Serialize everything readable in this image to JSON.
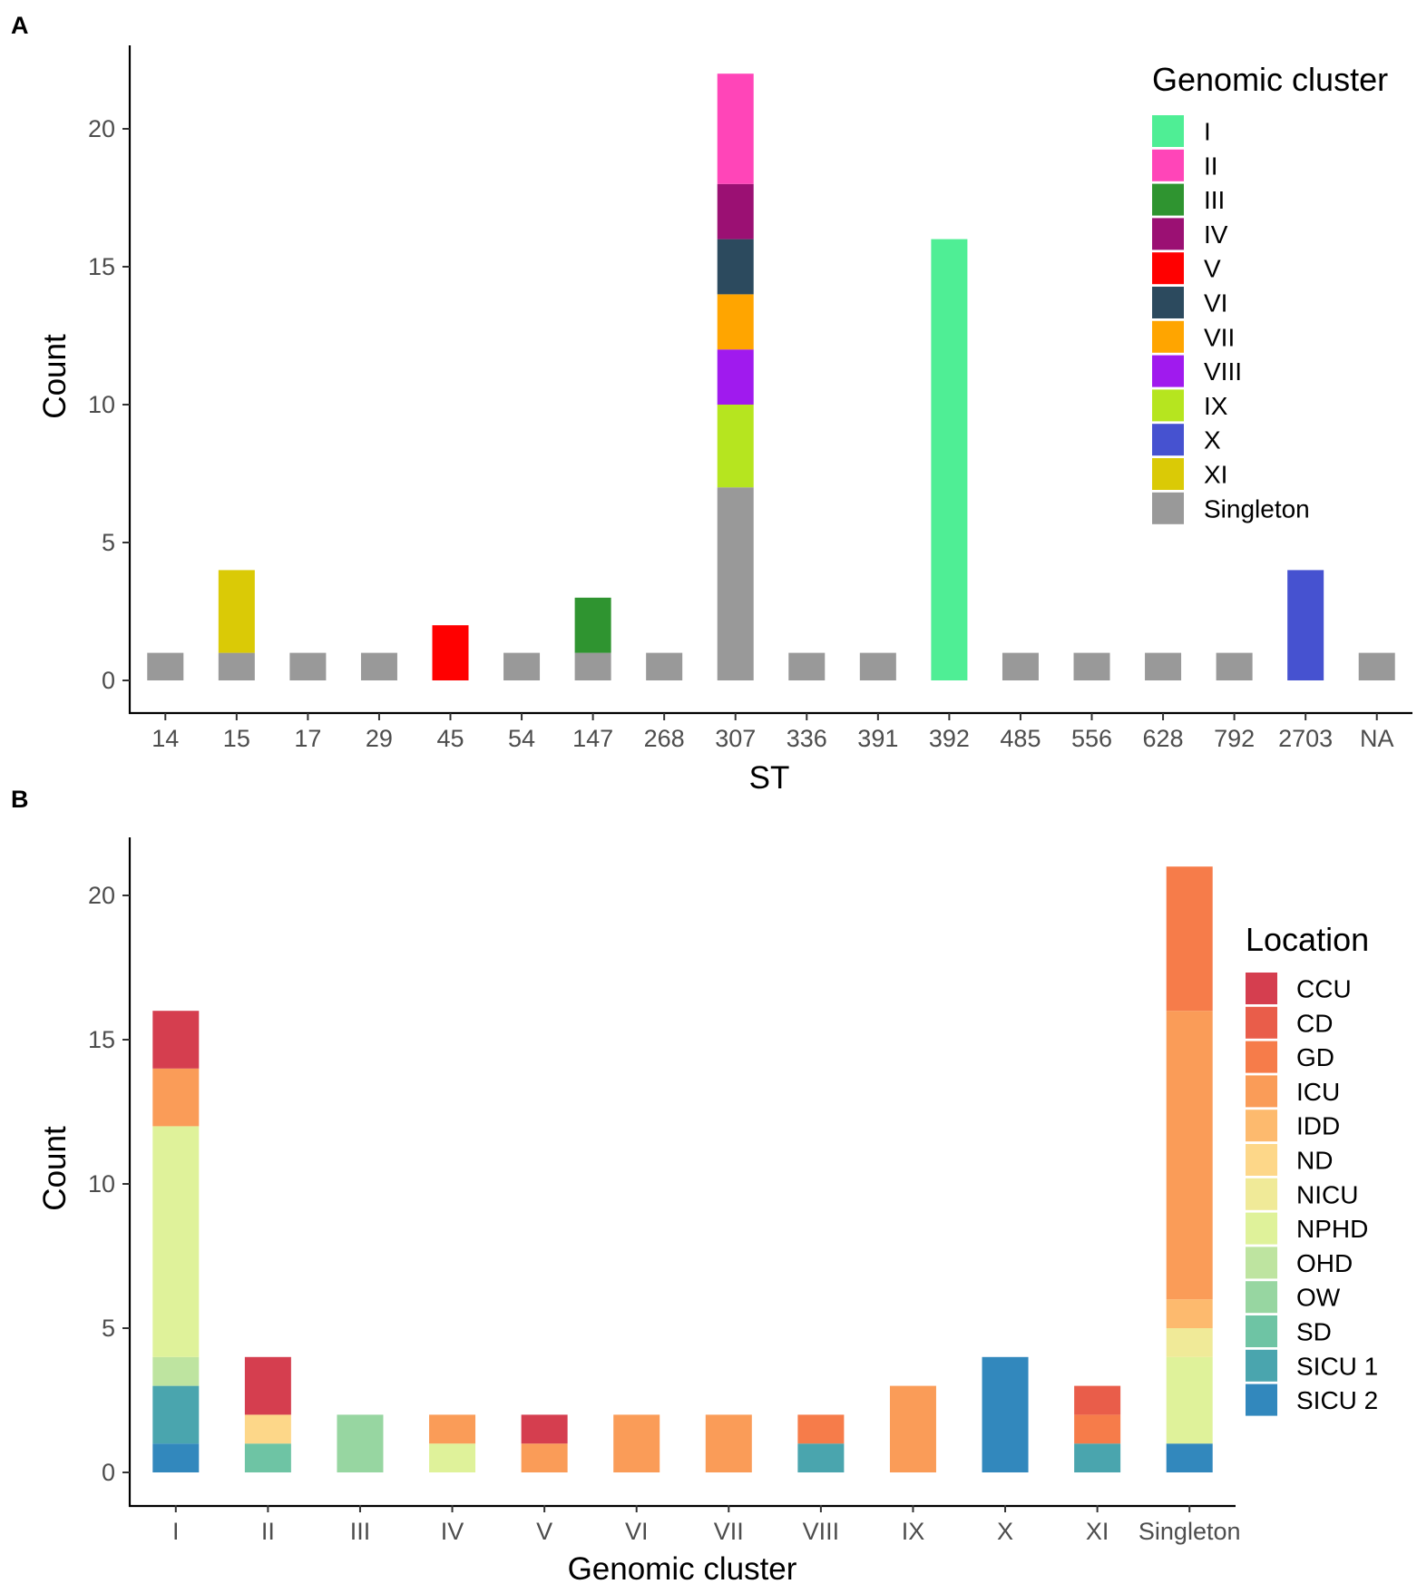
{
  "chart_data": [
    {
      "panel": "A",
      "type": "bar",
      "stacked": true,
      "xlabel": "ST",
      "ylabel": "Count",
      "ylim": [
        0,
        22
      ],
      "yticks": [
        0,
        5,
        10,
        15,
        20
      ],
      "categories": [
        "14",
        "15",
        "17",
        "29",
        "45",
        "54",
        "147",
        "268",
        "307",
        "336",
        "391",
        "392",
        "485",
        "556",
        "628",
        "792",
        "2703",
        "NA"
      ],
      "legend_title": "Genomic cluster",
      "series": [
        {
          "name": "I",
          "color": "#4FEE95",
          "values": [
            0,
            0,
            0,
            0,
            0,
            0,
            0,
            0,
            0,
            0,
            0,
            16,
            0,
            0,
            0,
            0,
            0,
            0
          ]
        },
        {
          "name": "II",
          "color": "#FF45B8",
          "values": [
            0,
            0,
            0,
            0,
            0,
            0,
            0,
            0,
            4,
            0,
            0,
            0,
            0,
            0,
            0,
            0,
            0,
            0
          ]
        },
        {
          "name": "III",
          "color": "#2F9430",
          "values": [
            0,
            0,
            0,
            0,
            0,
            0,
            2,
            0,
            0,
            0,
            0,
            0,
            0,
            0,
            0,
            0,
            0,
            0
          ]
        },
        {
          "name": "IV",
          "color": "#9B1073",
          "values": [
            0,
            0,
            0,
            0,
            0,
            0,
            0,
            0,
            2,
            0,
            0,
            0,
            0,
            0,
            0,
            0,
            0,
            0
          ]
        },
        {
          "name": "V",
          "color": "#FF0000",
          "values": [
            0,
            0,
            0,
            0,
            2,
            0,
            0,
            0,
            0,
            0,
            0,
            0,
            0,
            0,
            0,
            0,
            0,
            0
          ]
        },
        {
          "name": "VI",
          "color": "#2C4A5E",
          "values": [
            0,
            0,
            0,
            0,
            0,
            0,
            0,
            0,
            2,
            0,
            0,
            0,
            0,
            0,
            0,
            0,
            0,
            0
          ]
        },
        {
          "name": "VII",
          "color": "#FFA500",
          "values": [
            0,
            0,
            0,
            0,
            0,
            0,
            0,
            0,
            2,
            0,
            0,
            0,
            0,
            0,
            0,
            0,
            0,
            0
          ]
        },
        {
          "name": "VIII",
          "color": "#A01AEE",
          "values": [
            0,
            0,
            0,
            0,
            0,
            0,
            0,
            0,
            2,
            0,
            0,
            0,
            0,
            0,
            0,
            0,
            0,
            0
          ]
        },
        {
          "name": "IX",
          "color": "#B6E51F",
          "values": [
            0,
            0,
            0,
            0,
            0,
            0,
            0,
            0,
            3,
            0,
            0,
            0,
            0,
            0,
            0,
            0,
            0,
            0
          ]
        },
        {
          "name": "X",
          "color": "#4652D0",
          "values": [
            0,
            0,
            0,
            0,
            0,
            0,
            0,
            0,
            0,
            0,
            0,
            0,
            0,
            0,
            0,
            0,
            4,
            0
          ]
        },
        {
          "name": "XI",
          "color": "#DACA06",
          "values": [
            0,
            3,
            0,
            0,
            0,
            0,
            0,
            0,
            0,
            0,
            0,
            0,
            0,
            0,
            0,
            0,
            0,
            0
          ]
        },
        {
          "name": "Singleton",
          "color": "#999999",
          "values": [
            1,
            1,
            1,
            1,
            0,
            1,
            1,
            1,
            7,
            1,
            1,
            0,
            1,
            1,
            1,
            1,
            0,
            1
          ]
        }
      ]
    },
    {
      "panel": "B",
      "type": "bar",
      "stacked": true,
      "xlabel": "Genomic cluster",
      "ylabel": "Count",
      "ylim": [
        0,
        22
      ],
      "yticks": [
        0,
        5,
        10,
        15,
        20
      ],
      "categories": [
        "I",
        "II",
        "III",
        "IV",
        "V",
        "VI",
        "VII",
        "VIII",
        "IX",
        "X",
        "XI",
        "Singleton"
      ],
      "legend_title": "Location",
      "series": [
        {
          "name": "CCU",
          "color": "#D53E4F",
          "values": [
            2,
            2,
            0,
            0,
            1,
            0,
            0,
            0,
            0,
            0,
            0,
            0
          ]
        },
        {
          "name": "CD",
          "color": "#E95D4A",
          "values": [
            0,
            0,
            0,
            0,
            0,
            0,
            0,
            0,
            0,
            0,
            1,
            0
          ]
        },
        {
          "name": "GD",
          "color": "#F67C4A",
          "values": [
            0,
            0,
            0,
            0,
            0,
            0,
            0,
            1,
            0,
            0,
            1,
            5
          ]
        },
        {
          "name": "ICU",
          "color": "#FA9C58",
          "values": [
            2,
            0,
            0,
            1,
            1,
            2,
            2,
            0,
            3,
            0,
            0,
            10
          ]
        },
        {
          "name": "IDD",
          "color": "#FDBA6E",
          "values": [
            0,
            0,
            0,
            0,
            0,
            0,
            0,
            0,
            0,
            0,
            0,
            1
          ]
        },
        {
          "name": "ND",
          "color": "#FDD789",
          "values": [
            0,
            1,
            0,
            0,
            0,
            0,
            0,
            0,
            0,
            0,
            0,
            0
          ]
        },
        {
          "name": "NICU",
          "color": "#F0EA98",
          "values": [
            0,
            0,
            0,
            0,
            0,
            0,
            0,
            0,
            0,
            0,
            0,
            1
          ]
        },
        {
          "name": "NPHD",
          "color": "#DFF29A",
          "values": [
            8,
            0,
            0,
            1,
            0,
            0,
            0,
            0,
            0,
            0,
            0,
            3
          ]
        },
        {
          "name": "OHD",
          "color": "#BEE4A0",
          "values": [
            1,
            0,
            0,
            0,
            0,
            0,
            0,
            0,
            0,
            0,
            0,
            0
          ]
        },
        {
          "name": "OW",
          "color": "#97D6A1",
          "values": [
            0,
            0,
            2,
            0,
            0,
            0,
            0,
            0,
            0,
            0,
            0,
            0
          ]
        },
        {
          "name": "SD",
          "color": "#6EC4A4",
          "values": [
            0,
            1,
            0,
            0,
            0,
            0,
            0,
            0,
            0,
            0,
            0,
            0
          ]
        },
        {
          "name": "SICU 1",
          "color": "#4AA5AE",
          "values": [
            2,
            0,
            0,
            0,
            0,
            0,
            0,
            1,
            0,
            0,
            1,
            0
          ]
        },
        {
          "name": "SICU 2",
          "color": "#3288BD",
          "values": [
            1,
            0,
            0,
            0,
            0,
            0,
            0,
            0,
            0,
            4,
            0,
            1
          ]
        }
      ]
    }
  ]
}
